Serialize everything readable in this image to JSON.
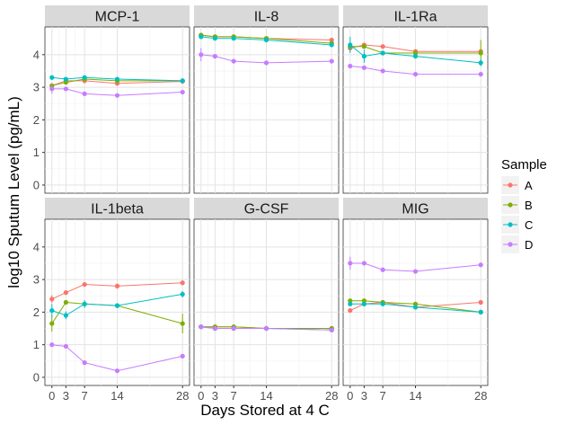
{
  "chart_data": {
    "type": "line",
    "xlabel": "Days Stored at 4 C",
    "ylabel": "log10 Sputum Level (pg/mL)",
    "x": [
      0,
      3,
      7,
      14,
      28
    ],
    "x_ticks": [
      0,
      3,
      7,
      14,
      28
    ],
    "y_ticks": [
      0,
      1,
      2,
      3,
      4
    ],
    "xlim": [
      -1.5,
      29.5
    ],
    "ylim": [
      -0.25,
      4.85
    ],
    "grid": true,
    "legend": {
      "title": "Sample",
      "position": "right",
      "entries": [
        {
          "name": "A",
          "color": "#F8766D"
        },
        {
          "name": "B",
          "color": "#7CAE00"
        },
        {
          "name": "C",
          "color": "#00BFC4"
        },
        {
          "name": "D",
          "color": "#C77CFF"
        }
      ]
    },
    "panels": [
      {
        "title": "MCP-1",
        "series": [
          {
            "name": "A",
            "values": [
              3.05,
              3.2,
              3.2,
              3.12,
              3.18
            ],
            "err": [
              0.05,
              0.04,
              0.05,
              0.04,
              0.04
            ]
          },
          {
            "name": "B",
            "values": [
              3.05,
              3.15,
              3.25,
              3.2,
              3.2
            ],
            "err": [
              0.05,
              0.04,
              0.05,
              0.04,
              0.04
            ]
          },
          {
            "name": "C",
            "values": [
              3.3,
              3.25,
              3.3,
              3.25,
              3.2
            ],
            "err": [
              0.05,
              0.04,
              0.05,
              0.04,
              0.04
            ]
          },
          {
            "name": "D",
            "values": [
              2.95,
              2.95,
              2.8,
              2.75,
              2.85
            ],
            "err": [
              0.15,
              0.05,
              0.05,
              0.04,
              0.04
            ]
          }
        ]
      },
      {
        "title": "IL-8",
        "series": [
          {
            "name": "A",
            "values": [
              4.6,
              4.55,
              4.55,
              4.5,
              4.45
            ],
            "err": [
              0.05,
              0.04,
              0.04,
              0.04,
              0.04
            ]
          },
          {
            "name": "B",
            "values": [
              4.6,
              4.55,
              4.55,
              4.5,
              4.35
            ],
            "err": [
              0.05,
              0.04,
              0.04,
              0.04,
              0.04
            ]
          },
          {
            "name": "C",
            "values": [
              4.55,
              4.5,
              4.5,
              4.45,
              4.3
            ],
            "err": [
              0.05,
              0.04,
              0.04,
              0.04,
              0.04
            ]
          },
          {
            "name": "D",
            "values": [
              4.0,
              3.95,
              3.8,
              3.75,
              3.8
            ],
            "err": [
              0.2,
              0.04,
              0.04,
              0.04,
              0.04
            ]
          }
        ]
      },
      {
        "title": "IL-1Ra",
        "series": [
          {
            "name": "A",
            "values": [
              4.2,
              4.3,
              4.25,
              4.1,
              4.1
            ],
            "err": [
              0.06,
              0.05,
              0.05,
              0.04,
              0.04
            ]
          },
          {
            "name": "B",
            "values": [
              4.25,
              4.25,
              4.05,
              4.05,
              4.05
            ],
            "err": [
              0.06,
              0.05,
              0.05,
              0.04,
              0.4
            ]
          },
          {
            "name": "C",
            "values": [
              4.3,
              3.95,
              4.05,
              3.95,
              3.75
            ],
            "err": [
              0.25,
              0.2,
              0.05,
              0.04,
              0.1
            ]
          },
          {
            "name": "D",
            "values": [
              3.65,
              3.6,
              3.5,
              3.4,
              3.4
            ],
            "err": [
              0.05,
              0.04,
              0.04,
              0.04,
              0.04
            ]
          }
        ]
      },
      {
        "title": "IL-1beta",
        "series": [
          {
            "name": "A",
            "values": [
              2.4,
              2.6,
              2.85,
              2.8,
              2.9
            ],
            "err": [
              0.12,
              0.06,
              0.05,
              0.08,
              0.05
            ]
          },
          {
            "name": "B",
            "values": [
              1.65,
              2.3,
              2.25,
              2.2,
              1.65
            ],
            "err": [
              0.25,
              0.06,
              0.08,
              0.05,
              0.3
            ]
          },
          {
            "name": "C",
            "values": [
              2.05,
              1.9,
              2.25,
              2.2,
              2.55
            ],
            "err": [
              0.2,
              0.12,
              0.12,
              0.05,
              0.1
            ]
          },
          {
            "name": "D",
            "values": [
              1.0,
              0.95,
              0.45,
              0.2,
              0.65
            ],
            "err": [
              0.06,
              0.05,
              0.05,
              0.04,
              0.05
            ]
          }
        ]
      },
      {
        "title": "G-CSF",
        "series": [
          {
            "name": "A",
            "values": [
              1.55,
              1.55,
              1.55,
              1.5,
              1.5
            ],
            "err": [
              0.03,
              0.03,
              0.03,
              0.03,
              0.03
            ]
          },
          {
            "name": "B",
            "values": [
              1.55,
              1.55,
              1.55,
              1.5,
              1.5
            ],
            "err": [
              0.03,
              0.03,
              0.03,
              0.03,
              0.03
            ]
          },
          {
            "name": "C",
            "values": [
              1.55,
              1.5,
              1.5,
              1.5,
              1.45
            ],
            "err": [
              0.03,
              0.03,
              0.03,
              0.03,
              0.03
            ]
          },
          {
            "name": "D",
            "values": [
              1.55,
              1.5,
              1.5,
              1.5,
              1.45
            ],
            "err": [
              0.03,
              0.03,
              0.03,
              0.03,
              0.03
            ]
          }
        ]
      },
      {
        "title": "MIG",
        "series": [
          {
            "name": "A",
            "values": [
              2.05,
              2.25,
              2.3,
              2.15,
              2.3
            ],
            "err": [
              0.05,
              0.04,
              0.04,
              0.04,
              0.04
            ]
          },
          {
            "name": "B",
            "values": [
              2.35,
              2.35,
              2.3,
              2.25,
              2.0
            ],
            "err": [
              0.05,
              0.04,
              0.04,
              0.04,
              0.04
            ]
          },
          {
            "name": "C",
            "values": [
              2.25,
              2.25,
              2.25,
              2.15,
              2.0
            ],
            "err": [
              0.05,
              0.04,
              0.04,
              0.04,
              0.04
            ]
          },
          {
            "name": "D",
            "values": [
              3.5,
              3.5,
              3.3,
              3.25,
              3.45
            ],
            "err": [
              0.2,
              0.05,
              0.04,
              0.04,
              0.04
            ]
          }
        ]
      }
    ]
  }
}
